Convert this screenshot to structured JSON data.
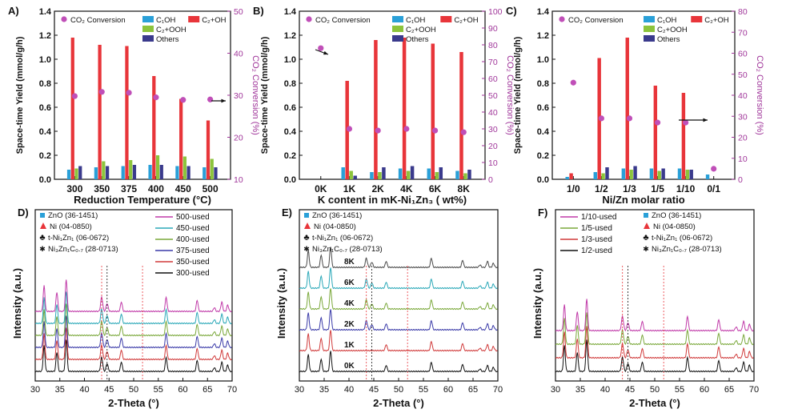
{
  "colors": {
    "c1": "#2aa0d8",
    "c2": "#e8353a",
    "c2ooh": "#8cc43c",
    "others": "#3a3a8c",
    "conv": "#c04fb8",
    "axis_right": "#a0369a"
  },
  "chart_data": [
    {
      "type": "bar",
      "panel": "A)",
      "title": "",
      "xlabel": "Reduction Temperature (°C)",
      "ylabel": "Space-time Yield (mmol/g/h)",
      "y2label": "CO₂ Conversion (%)",
      "categories": [
        "300",
        "350",
        "375",
        "400",
        "450",
        "500"
      ],
      "ylim": [
        0,
        1.4
      ],
      "yticks": [
        "0.0",
        "0.2",
        "0.4",
        "0.6",
        "0.8",
        "1.0",
        "1.2",
        "1.4"
      ],
      "y2lim": [
        10,
        50
      ],
      "y2ticks": [
        "10",
        "20",
        "30",
        "40",
        "50"
      ],
      "legend": [
        "CO₂ Conversion",
        "C₁OH",
        "C₂+OH",
        "C₂+OOH",
        "Others"
      ],
      "series": [
        {
          "name": "C₁OH",
          "values": [
            0.08,
            0.1,
            0.11,
            0.12,
            0.11,
            0.1
          ]
        },
        {
          "name": "C₂+OH",
          "values": [
            1.18,
            1.12,
            1.11,
            0.86,
            0.67,
            0.49
          ]
        },
        {
          "name": "C₂+OOH",
          "values": [
            0.09,
            0.15,
            0.16,
            0.2,
            0.19,
            0.17
          ]
        },
        {
          "name": "Others",
          "values": [
            0.11,
            0.11,
            0.12,
            0.12,
            0.11,
            0.1
          ]
        }
      ],
      "conversion": [
        29.8,
        30.8,
        30.6,
        29.5,
        28.9,
        29.0
      ]
    },
    {
      "type": "bar",
      "panel": "B)",
      "title": "",
      "xlabel": "K content in mK-Ni₁Zn₃ ( wt%)",
      "ylabel": "Space-time Yield (mmol/g/h)",
      "y2label": "CO₂ Conversion (%)",
      "categories": [
        "0K",
        "1K",
        "2K",
        "4K",
        "6K",
        "8K"
      ],
      "ylim": [
        0,
        1.4
      ],
      "yticks": [
        "0.0",
        "0.2",
        "0.4",
        "0.6",
        "0.8",
        "1.0",
        "1.2",
        "1.4"
      ],
      "y2lim": [
        0,
        100
      ],
      "y2ticks": [
        "0",
        "10",
        "20",
        "30",
        "40",
        "50",
        "60",
        "70",
        "80",
        "90",
        "100"
      ],
      "legend": [
        "CO₂ Conversion",
        "C₁OH",
        "C₂+OH",
        "C₂+OOH",
        "Others"
      ],
      "series": [
        {
          "name": "C₁OH",
          "values": [
            0.0,
            0.1,
            0.06,
            0.09,
            0.09,
            0.07
          ]
        },
        {
          "name": "C₂+OH",
          "values": [
            0.0,
            0.82,
            1.16,
            1.18,
            1.13,
            1.06
          ]
        },
        {
          "name": "C₂+OOH",
          "values": [
            0.0,
            0.07,
            0.06,
            0.07,
            0.06,
            0.05
          ]
        },
        {
          "name": "Others",
          "values": [
            0.0,
            0.03,
            0.1,
            0.11,
            0.1,
            0.08
          ]
        }
      ],
      "conversion": [
        78,
        30,
        29,
        30,
        29,
        28
      ]
    },
    {
      "type": "bar",
      "panel": "C)",
      "title": "",
      "xlabel": "Ni/Zn molar ratio",
      "ylabel": "Space-time Yield (mmol/g/h)",
      "y2label": "CO₂ Conversion (%)",
      "categories": [
        "1/0",
        "1/2",
        "1/3",
        "1/5",
        "1/10",
        "0/1"
      ],
      "ylim": [
        0,
        1.4
      ],
      "yticks": [
        "0.0",
        "0.2",
        "0.4",
        "0.6",
        "0.8",
        "1.0",
        "1.2",
        "1.4"
      ],
      "y2lim": [
        0,
        80
      ],
      "y2ticks": [
        "0",
        "10",
        "20",
        "30",
        "40",
        "50",
        "60",
        "70",
        "80"
      ],
      "legend": [
        "CO₂ Conversion",
        "C₁OH",
        "C₂+OH",
        "C₂+OOH",
        "Others"
      ],
      "series": [
        {
          "name": "C₁OH",
          "values": [
            0.02,
            0.06,
            0.09,
            0.09,
            0.09,
            0.04
          ]
        },
        {
          "name": "C₂+OH",
          "values": [
            0.05,
            1.01,
            1.18,
            0.78,
            0.72,
            0.0
          ]
        },
        {
          "name": "C₂+OOH",
          "values": [
            0.0,
            0.05,
            0.08,
            0.07,
            0.08,
            0.0
          ]
        },
        {
          "name": "Others",
          "values": [
            0.0,
            0.1,
            0.11,
            0.09,
            0.08,
            0.0
          ]
        }
      ],
      "conversion": [
        46,
        29,
        29,
        27,
        27,
        5
      ]
    },
    {
      "type": "line",
      "panel": "D)",
      "xlabel": "2-Theta (°)",
      "ylabel": "Intensity (a.u.)",
      "xlim": [
        30,
        70
      ],
      "xticks": [
        "30",
        "35",
        "40",
        "45",
        "50",
        "55",
        "60",
        "65",
        "70"
      ],
      "series": [
        {
          "name": "500-used",
          "color": "#c03aa8"
        },
        {
          "name": "450-used",
          "color": "#2aa8b8"
        },
        {
          "name": "400-used",
          "color": "#7aa83a"
        },
        {
          "name": "375-used",
          "color": "#3a3aa8"
        },
        {
          "name": "350-used",
          "color": "#d03a3a"
        },
        {
          "name": "300-used",
          "color": "#111111"
        }
      ],
      "legend_ref": [
        "ZnO (36-1451)",
        "Ni (04-0850)",
        "t-Ni₁Zn₁ (06-0672)",
        "Ni₃Zn₁C₀.₇ (28-0713)"
      ]
    },
    {
      "type": "line",
      "panel": "E)",
      "xlabel": "2-Theta (°)",
      "ylabel": "Intensity (a.u.)",
      "xlim": [
        30,
        70
      ],
      "xticks": [
        "30",
        "35",
        "40",
        "45",
        "50",
        "55",
        "60",
        "65",
        "70"
      ],
      "series": [
        {
          "name": "8K",
          "color": "#4a4a4a"
        },
        {
          "name": "6K",
          "color": "#2aa8b8"
        },
        {
          "name": "4K",
          "color": "#7aa83a"
        },
        {
          "name": "2K",
          "color": "#3a3aa8"
        },
        {
          "name": "1K",
          "color": "#d03a3a"
        },
        {
          "name": "0K",
          "color": "#111111"
        }
      ],
      "legend_ref": [
        "ZnO (36-1451)",
        "Ni (04-0850)",
        "t-Ni₁Zn₁ (06-0672)",
        "Ni₃Zn₁C₀.₇ (28-0713)"
      ]
    },
    {
      "type": "line",
      "panel": "F)",
      "xlabel": "2-Theta (°)",
      "ylabel": "Intensity (a.u.)",
      "xlim": [
        30,
        70
      ],
      "xticks": [
        "30",
        "35",
        "40",
        "45",
        "50",
        "55",
        "60",
        "65",
        "70"
      ],
      "series": [
        {
          "name": "1/10-used",
          "color": "#c03aa8"
        },
        {
          "name": "1/5-used",
          "color": "#7aa83a"
        },
        {
          "name": "1/3-used",
          "color": "#d03a3a"
        },
        {
          "name": "1/2-used",
          "color": "#111111"
        }
      ],
      "legend_ref": [
        "ZnO (36-1451)",
        "Ni (04-0850)",
        "t-Ni₁Zn₁ (06-0672)",
        "Ni₃Zn₁C₀.₇ (28-0713)"
      ]
    }
  ]
}
